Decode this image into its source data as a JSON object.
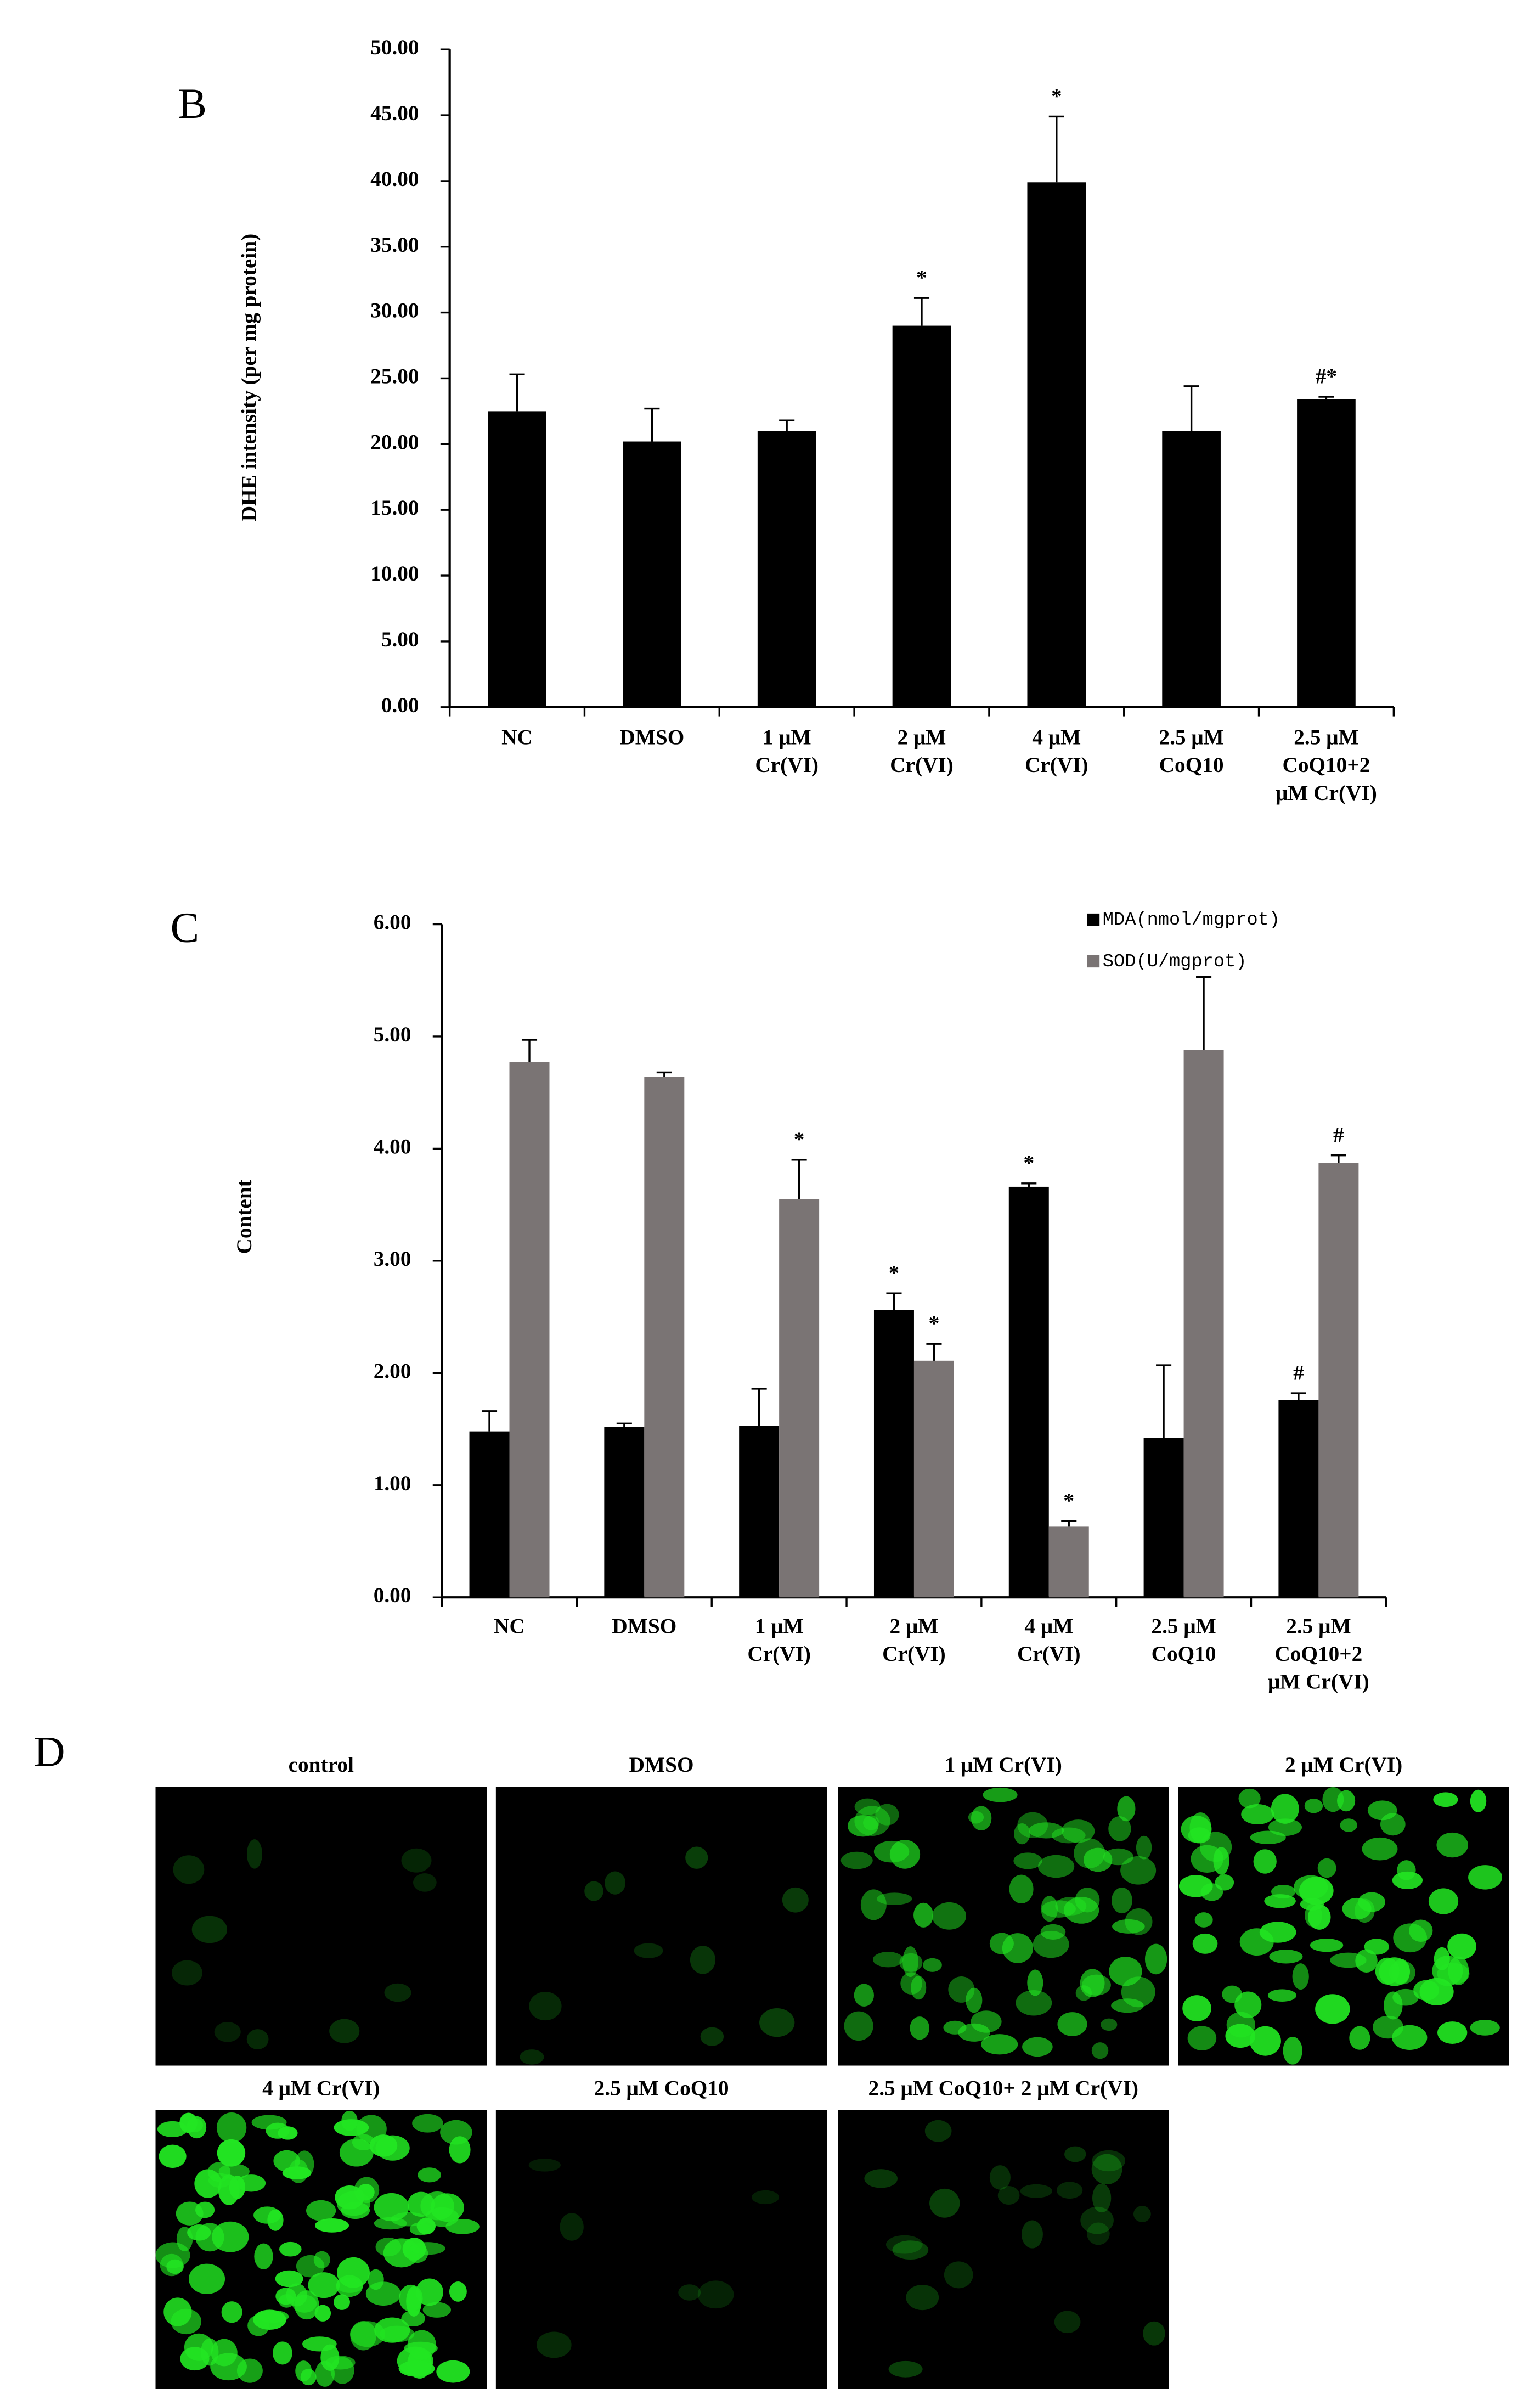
{
  "chart_data": [
    {
      "type": "bar",
      "panel_label": "B",
      "ylabel": "DHE intensity (per mg protein)",
      "categories": [
        [
          "NC"
        ],
        [
          "DMSO"
        ],
        [
          "1 μM",
          "Cr(VI)"
        ],
        [
          "2 μM",
          "Cr(VI)"
        ],
        [
          "4  μM",
          "Cr(VI)"
        ],
        [
          "2.5 μM",
          "CoQ10"
        ],
        [
          "2.5 μM",
          "CoQ10+2",
          "μM Cr(VI)"
        ]
      ],
      "series": [
        {
          "color": "#000000",
          "values": [
            22.5,
            20.2,
            21.0,
            29.0,
            39.9,
            21.0,
            23.4
          ],
          "errors": [
            2.8,
            2.5,
            0.8,
            2.1,
            5.0,
            3.4,
            0.2
          ],
          "annotations": [
            null,
            null,
            null,
            "*",
            "*",
            null,
            "#*"
          ]
        }
      ],
      "ylim": [
        0,
        50
      ],
      "yticks": [
        {
          "value": 0,
          "label": "0.00"
        },
        {
          "value": 5,
          "label": "5.00"
        },
        {
          "value": 10,
          "label": "10.00"
        },
        {
          "value": 15,
          "label": "15.00"
        },
        {
          "value": 20,
          "label": "20.00"
        },
        {
          "value": 25,
          "label": "25.00"
        },
        {
          "value": 30,
          "label": "30.00"
        },
        {
          "value": 35,
          "label": "35.00"
        },
        {
          "value": 40,
          "label": "40.00"
        },
        {
          "value": 45,
          "label": "45.00"
        },
        {
          "value": 50,
          "label": "50.00"
        }
      ]
    },
    {
      "type": "bar",
      "panel_label": "C",
      "ylabel": "Content",
      "categories": [
        [
          "NC"
        ],
        [
          "DMSO"
        ],
        [
          "1 μM",
          "Cr(VI)"
        ],
        [
          "2 μM",
          "Cr(VI)"
        ],
        [
          "4  μM",
          "Cr(VI)"
        ],
        [
          "2.5 μM",
          "CoQ10"
        ],
        [
          "2.5 μM",
          "CoQ10+2",
          "μM Cr(VI)"
        ]
      ],
      "series": [
        {
          "name": "MDA(nmol/mgprot)",
          "color": "#000000",
          "values": [
            1.48,
            1.52,
            1.53,
            2.56,
            3.66,
            1.42,
            1.76
          ],
          "errors": [
            0.18,
            0.03,
            0.33,
            0.15,
            0.03,
            0.65,
            0.06
          ],
          "annotations": [
            null,
            null,
            null,
            "*",
            "*",
            null,
            "#"
          ]
        },
        {
          "name": "SOD(U/mgprot)",
          "color": "#7a7474",
          "values": [
            4.77,
            4.64,
            3.55,
            2.11,
            0.63,
            4.88,
            3.87
          ],
          "errors": [
            0.2,
            0.04,
            0.35,
            0.15,
            0.05,
            0.65,
            0.07
          ],
          "annotations": [
            null,
            null,
            "*",
            "*",
            "*",
            null,
            "#"
          ]
        }
      ],
      "ylim": [
        0,
        6
      ],
      "yticks": [
        {
          "value": 0,
          "label": "0.00"
        },
        {
          "value": 1,
          "label": "1.00"
        },
        {
          "value": 2,
          "label": "2.00"
        },
        {
          "value": 3,
          "label": "3.00"
        },
        {
          "value": 4,
          "label": "4.00"
        },
        {
          "value": 5,
          "label": "5.00"
        },
        {
          "value": 6,
          "label": "6.00"
        }
      ],
      "legend": "upper right"
    }
  ],
  "panel_d": {
    "panel_label": "D",
    "images": [
      {
        "label": "control"
      },
      {
        "label": "DMSO"
      },
      {
        "label": "1 μM Cr(VI)"
      },
      {
        "label": "2 μM Cr(VI)"
      },
      {
        "label": "4 μM Cr(VI)"
      },
      {
        "label": "2.5 μM CoQ10"
      },
      {
        "label": "2.5 μM CoQ10+ 2 μM Cr(VI)"
      }
    ]
  }
}
